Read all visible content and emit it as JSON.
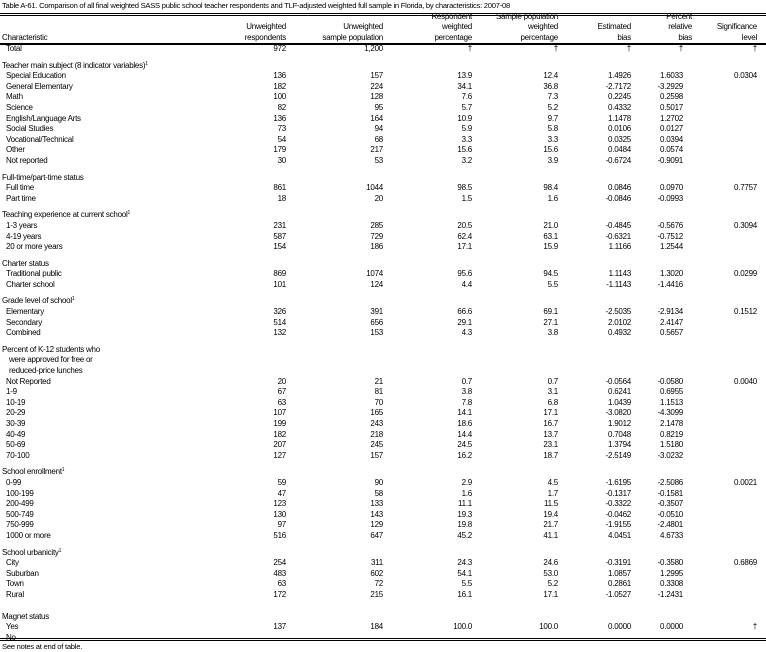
{
  "title": "Table A-61. Comparison of all final weighted SASS public school teacher respondents and TLF-adjusted weighted full sample in Florida, by characteristics: 2007-08",
  "headers": {
    "characteristic": [
      "Characteristic"
    ],
    "unweighted_respondents": [
      "Unweighted",
      "respondents"
    ],
    "unweighted_sample_population": [
      "Unweighted",
      "sample population"
    ],
    "respondent_weighted_percentage": [
      "Respondent",
      "weighted",
      "percentage"
    ],
    "sample_population_weighted_percentage": [
      "Sample population",
      "weighted",
      "percentage"
    ],
    "estimated_bias": [
      "Estimated",
      "bias"
    ],
    "percent_relative_bias": [
      "Percent",
      "relative",
      "bias"
    ],
    "significance_level": [
      "Significance",
      "level"
    ]
  },
  "rows": [
    {
      "type": "data",
      "label": "Total",
      "values": [
        "972",
        "1,200",
        "†",
        "†",
        "†",
        "†",
        "†"
      ]
    },
    {
      "type": "spacer"
    },
    {
      "type": "group",
      "label": "Teacher main subject (8 indicator variables)",
      "note": "1"
    },
    {
      "type": "data",
      "label": "Special Education",
      "values": [
        "136",
        "157",
        "13.9",
        "12.4",
        "1.4926",
        "1.6033",
        "0.0304"
      ]
    },
    {
      "type": "data",
      "label": "General Elementary",
      "values": [
        "182",
        "224",
        "34.1",
        "36.8",
        "-2.7172",
        "-3.2929",
        ""
      ]
    },
    {
      "type": "data",
      "label": "Math",
      "values": [
        "100",
        "128",
        "7.6",
        "7.3",
        "0.2245",
        "0.2598",
        ""
      ]
    },
    {
      "type": "data",
      "label": "Science",
      "values": [
        "82",
        "95",
        "5.7",
        "5.2",
        "0.4332",
        "0.5017",
        ""
      ]
    },
    {
      "type": "data",
      "label": "English/Language Arts",
      "values": [
        "136",
        "164",
        "10.9",
        "9.7",
        "1.1478",
        "1.2702",
        ""
      ]
    },
    {
      "type": "data",
      "label": "Social Studies",
      "values": [
        "73",
        "94",
        "5.9",
        "5.8",
        "0.0106",
        "0.0127",
        ""
      ]
    },
    {
      "type": "data",
      "label": "Vocational/Technical",
      "values": [
        "54",
        "68",
        "3.3",
        "3.3",
        "0.0325",
        "0.0394",
        ""
      ]
    },
    {
      "type": "data",
      "label": "Other",
      "values": [
        "179",
        "217",
        "15.6",
        "15.6",
        "0.0484",
        "0.0574",
        ""
      ]
    },
    {
      "type": "data",
      "label": "Not reported",
      "values": [
        "30",
        "53",
        "3.2",
        "3.9",
        "-0.6724",
        "-0.9091",
        ""
      ]
    },
    {
      "type": "spacer"
    },
    {
      "type": "group",
      "label": "Full-time/part-time status"
    },
    {
      "type": "data",
      "label": "Full time",
      "values": [
        "861",
        "1044",
        "98.5",
        "98.4",
        "0.0846",
        "0.0970",
        "0.7757"
      ]
    },
    {
      "type": "data",
      "label": "Part time",
      "values": [
        "18",
        "20",
        "1.5",
        "1.6",
        "-0.0846",
        "-0.0993",
        ""
      ]
    },
    {
      "type": "spacer"
    },
    {
      "type": "group",
      "label": "Teaching experience at current school",
      "note": "1"
    },
    {
      "type": "data",
      "label": "1-3 years",
      "values": [
        "231",
        "285",
        "20.5",
        "21.0",
        "-0.4845",
        "-0.5676",
        "0.3094"
      ]
    },
    {
      "type": "data",
      "label": "4-19 years",
      "values": [
        "587",
        "729",
        "62.4",
        "63.1",
        "-0.6321",
        "-0.7512",
        ""
      ]
    },
    {
      "type": "data",
      "label": "20 or more years",
      "values": [
        "154",
        "186",
        "17.1",
        "15.9",
        "1.1166",
        "1.2544",
        ""
      ]
    },
    {
      "type": "spacer"
    },
    {
      "type": "group",
      "label": "Charter status"
    },
    {
      "type": "data",
      "label": "Traditional public",
      "values": [
        "869",
        "1074",
        "95.6",
        "94.5",
        "1.1143",
        "1.3020",
        "0.0299"
      ]
    },
    {
      "type": "data",
      "label": "Charter school",
      "values": [
        "101",
        "124",
        "4.4",
        "5.5",
        "-1.1143",
        "-1.4416",
        ""
      ]
    },
    {
      "type": "spacer"
    },
    {
      "type": "group",
      "label": "Grade level of school",
      "note": "1"
    },
    {
      "type": "data",
      "label": "Elementary",
      "values": [
        "326",
        "391",
        "66.6",
        "69.1",
        "-2.5035",
        "-2.9134",
        "0.1512"
      ]
    },
    {
      "type": "data",
      "label": "Secondary",
      "values": [
        "514",
        "656",
        "29.1",
        "27.1",
        "2.0102",
        "2.4147",
        ""
      ]
    },
    {
      "type": "data",
      "label": "Combined",
      "values": [
        "132",
        "153",
        "4.3",
        "3.8",
        "0.4932",
        "0.5657",
        ""
      ]
    },
    {
      "type": "spacer"
    },
    {
      "type": "group",
      "label": "Percent of K-12 students who"
    },
    {
      "type": "cont",
      "label": "were approved for free or"
    },
    {
      "type": "cont",
      "label": "reduced-price lunches"
    },
    {
      "type": "data",
      "label": "Not Reported",
      "values": [
        "20",
        "21",
        "0.7",
        "0.7",
        "-0.0564",
        "-0.0580",
        "0.0040"
      ]
    },
    {
      "type": "data",
      "label": "1-9",
      "values": [
        "67",
        "81",
        "3.8",
        "3.1",
        "0.6241",
        "0.6955",
        ""
      ]
    },
    {
      "type": "data",
      "label": "10-19",
      "values": [
        "63",
        "70",
        "7.8",
        "6.8",
        "1.0439",
        "1.1513",
        ""
      ]
    },
    {
      "type": "data",
      "label": "20-29",
      "values": [
        "107",
        "165",
        "14.1",
        "17.1",
        "-3.0820",
        "-4.3099",
        ""
      ]
    },
    {
      "type": "data",
      "label": "30-39",
      "values": [
        "199",
        "243",
        "18.6",
        "16.7",
        "1.9012",
        "2.1478",
        ""
      ]
    },
    {
      "type": "data",
      "label": "40-49",
      "values": [
        "182",
        "218",
        "14.4",
        "13.7",
        "0.7048",
        "0.8219",
        ""
      ]
    },
    {
      "type": "data",
      "label": "50-69",
      "values": [
        "207",
        "245",
        "24.5",
        "23.1",
        "1.3794",
        "1.5180",
        ""
      ]
    },
    {
      "type": "data",
      "label": "70-100",
      "values": [
        "127",
        "157",
        "16.2",
        "18.7",
        "-2.5149",
        "-3.0232",
        ""
      ]
    },
    {
      "type": "spacer"
    },
    {
      "type": "group",
      "label": "School enrollment",
      "note": "1"
    },
    {
      "type": "data",
      "label": "0-99",
      "values": [
        "59",
        "90",
        "2.9",
        "4.5",
        "-1.6195",
        "-2.5086",
        "0.0021"
      ]
    },
    {
      "type": "data",
      "label": "100-199",
      "values": [
        "47",
        "58",
        "1.6",
        "1.7",
        "-0.1317",
        "-0.1581",
        ""
      ]
    },
    {
      "type": "data",
      "label": "200-499",
      "values": [
        "123",
        "133",
        "11.1",
        "11.5",
        "-0.3322",
        "-0.3507",
        ""
      ]
    },
    {
      "type": "data",
      "label": "500-749",
      "values": [
        "130",
        "143",
        "19.3",
        "19.4",
        "-0.0462",
        "-0.0510",
        ""
      ]
    },
    {
      "type": "data",
      "label": "750-999",
      "values": [
        "97",
        "129",
        "19.8",
        "21.7",
        "-1.9155",
        "-2.4801",
        ""
      ]
    },
    {
      "type": "data",
      "label": "1000 or more",
      "values": [
        "516",
        "647",
        "45.2",
        "41.1",
        "4.0451",
        "4.6733",
        ""
      ]
    },
    {
      "type": "spacer"
    },
    {
      "type": "group",
      "label": "School urbanicity",
      "note": "1"
    },
    {
      "type": "data",
      "label": "City",
      "values": [
        "254",
        "311",
        "24.3",
        "24.6",
        "-0.3191",
        "-0.3580",
        "0.6869"
      ]
    },
    {
      "type": "data",
      "label": "Suburban",
      "values": [
        "483",
        "602",
        "54.1",
        "53.0",
        "1.0857",
        "1.2995",
        ""
      ]
    },
    {
      "type": "data",
      "label": "Town",
      "values": [
        "63",
        "72",
        "5.5",
        "5.2",
        "0.2861",
        "0.3308",
        ""
      ]
    },
    {
      "type": "data",
      "label": "Rural",
      "values": [
        "172",
        "215",
        "16.1",
        "17.1",
        "-1.0527",
        "-1.2431",
        ""
      ]
    },
    {
      "type": "spacer-big"
    },
    {
      "type": "group",
      "label": "Magnet status"
    },
    {
      "type": "data",
      "label": "Yes",
      "values": [
        "137",
        "184",
        "100.0",
        "100.0",
        "0.0000",
        "0.0000",
        "†"
      ]
    },
    {
      "type": "data",
      "label": "No",
      "values": [
        "",
        "",
        "",
        "",
        "",
        "",
        ""
      ]
    }
  ],
  "footnote": "See notes at end of table."
}
